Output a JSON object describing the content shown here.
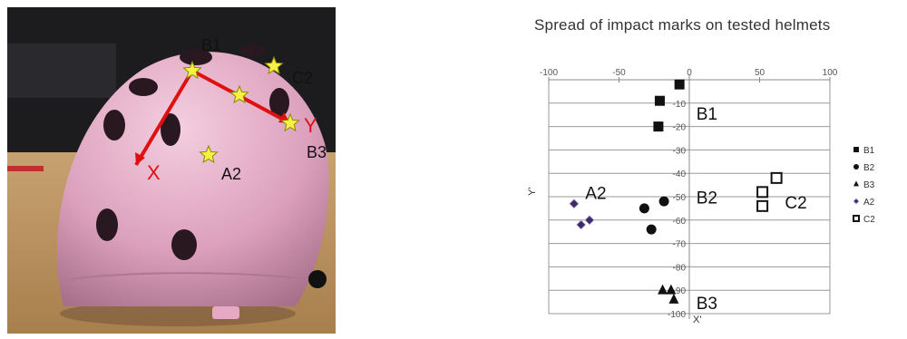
{
  "photo": {
    "labels": {
      "b1": "B1",
      "c2": "C2",
      "b3": "B3",
      "a2": "A2",
      "x_axis": "X",
      "y_axis": "Y"
    }
  },
  "chart_data": {
    "type": "scatter",
    "title": "Spread of impact marks on tested helmets",
    "xlabel": "X'",
    "ylabel": "Y'",
    "xlim": [
      -100,
      100
    ],
    "ylim": [
      -100,
      0
    ],
    "x_ticks": [
      -100,
      -50,
      0,
      50,
      100
    ],
    "y_ticks": [
      -10,
      -20,
      -30,
      -40,
      -50,
      -60,
      -70,
      -80,
      -90,
      -100
    ],
    "grid": true,
    "legend_position": "right",
    "series": [
      {
        "name": "B1",
        "marker": "square",
        "color": "#111111",
        "points": [
          [
            -7,
            -2
          ],
          [
            -21,
            -9
          ],
          [
            -22,
            -20
          ]
        ]
      },
      {
        "name": "B2",
        "marker": "circle",
        "color": "#111111",
        "points": [
          [
            -32,
            -55
          ],
          [
            -18,
            -52
          ],
          [
            -27,
            -64
          ]
        ]
      },
      {
        "name": "B3",
        "marker": "triangle",
        "color": "#111111",
        "points": [
          [
            -19,
            -90
          ],
          [
            -13,
            -90
          ],
          [
            -11,
            -94
          ]
        ]
      },
      {
        "name": "A2",
        "marker": "diamond",
        "color": "#3d2a66",
        "points": [
          [
            -82,
            -53
          ],
          [
            -77,
            -62
          ],
          [
            -71,
            -60
          ]
        ]
      },
      {
        "name": "C2",
        "marker": "open-square",
        "color": "#111111",
        "points": [
          [
            62,
            -42
          ],
          [
            52,
            -48
          ],
          [
            52,
            -54
          ]
        ]
      }
    ],
    "annotations": [
      {
        "text": "B1",
        "x": 5,
        "y": -17
      },
      {
        "text": "B2",
        "x": 5,
        "y": -53
      },
      {
        "text": "B3",
        "x": 5,
        "y": -98
      },
      {
        "text": "A2",
        "x": -74,
        "y": -51
      },
      {
        "text": "C2",
        "x": 68,
        "y": -55
      }
    ]
  }
}
